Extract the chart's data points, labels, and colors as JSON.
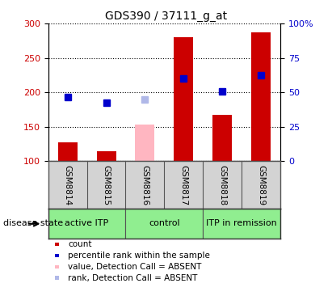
{
  "title": "GDS390 / 37111_g_at",
  "samples": [
    "GSM8814",
    "GSM8815",
    "GSM8816",
    "GSM8817",
    "GSM8818",
    "GSM8819"
  ],
  "bar_values": [
    128,
    115,
    null,
    280,
    168,
    287
  ],
  "bar_color": "#cc0000",
  "absent_bar_values": [
    null,
    null,
    153,
    null,
    null,
    null
  ],
  "absent_bar_color": "#FFB6C1",
  "rank_values": [
    193,
    185,
    null,
    220,
    202,
    225
  ],
  "rank_color": "#0000cc",
  "absent_rank_values": [
    null,
    null,
    190,
    null,
    null,
    null
  ],
  "absent_rank_color": "#b0b8e8",
  "ylim": [
    100,
    300
  ],
  "yticks": [
    100,
    150,
    200,
    250,
    300
  ],
  "right_ytick_labels": [
    "0",
    "25",
    "50",
    "75",
    "100%"
  ],
  "marker_size": 6,
  "bar_width": 0.5,
  "groups": [
    {
      "label": "active ITP",
      "start": 0,
      "end": 2,
      "color": "#90EE90"
    },
    {
      "label": "control",
      "start": 2,
      "end": 4,
      "color": "#90EE90"
    },
    {
      "label": "ITP in remission",
      "start": 4,
      "end": 6,
      "color": "#90EE90"
    }
  ],
  "legend_items": [
    {
      "label": "count",
      "color": "#cc0000"
    },
    {
      "label": "percentile rank within the sample",
      "color": "#0000cc"
    },
    {
      "label": "value, Detection Call = ABSENT",
      "color": "#FFB6C1"
    },
    {
      "label": "rank, Detection Call = ABSENT",
      "color": "#b0b8e8"
    }
  ],
  "sample_bg_color": "#d3d3d3",
  "plot_bg_color": "#ffffff",
  "right_label_color": "#0000cc",
  "left_label_color": "#cc0000",
  "disease_state_label": "disease state",
  "title_fontsize": 10,
  "tick_fontsize": 8,
  "label_fontsize": 8
}
